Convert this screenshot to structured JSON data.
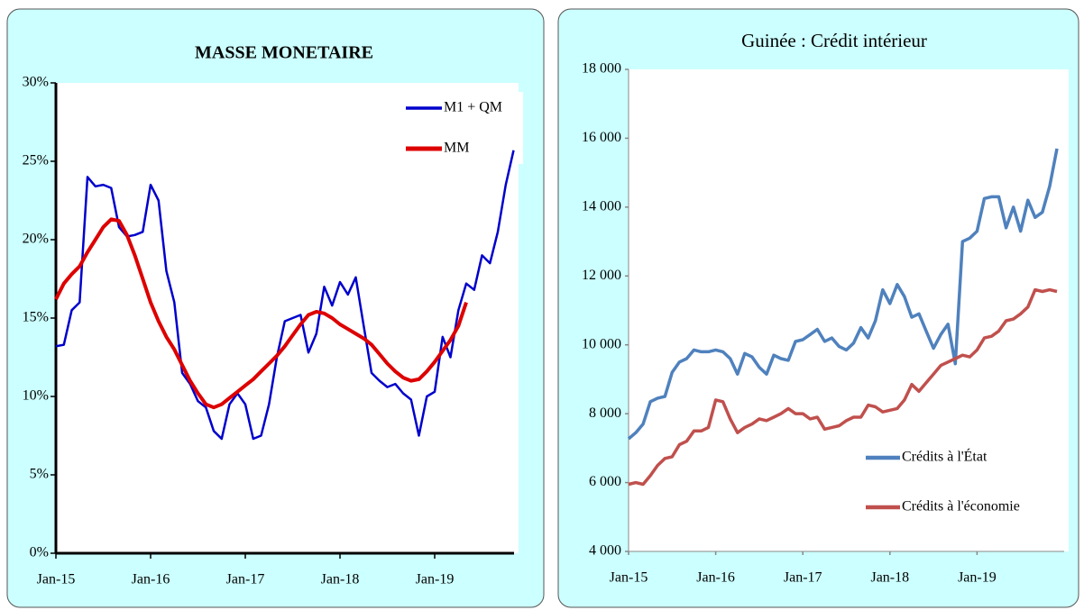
{
  "chart_data": [
    {
      "type": "line",
      "title": "MASSE MONETAIRE",
      "categories": [
        "Jan-15",
        null,
        null,
        null,
        null,
        null,
        null,
        null,
        null,
        null,
        null,
        null,
        "Jan-16",
        null,
        null,
        null,
        null,
        null,
        null,
        null,
        null,
        null,
        null,
        null,
        "Jan-17",
        null,
        null,
        null,
        null,
        null,
        null,
        null,
        null,
        null,
        null,
        null,
        "Jan-18",
        null,
        null,
        null,
        null,
        null,
        null,
        null,
        null,
        null,
        null,
        null,
        "Jan-19",
        null,
        null,
        null,
        null,
        null,
        null,
        null,
        null,
        null,
        null,
        null
      ],
      "series": [
        {
          "name": "M1 + QM",
          "color": "#0000cc",
          "values": [
            13.2,
            13.3,
            15.5,
            16,
            24,
            23.4,
            23.5,
            23.3,
            20.8,
            20.2,
            20.3,
            20.5,
            23.5,
            22.5,
            18,
            16,
            11.5,
            10.8,
            9.7,
            9.3,
            7.8,
            7.3,
            9.5,
            10.2,
            9.5,
            7.3,
            7.5,
            9.5,
            12.5,
            14.8,
            15,
            15.2,
            12.8,
            14,
            17,
            15.8,
            17.3,
            16.5,
            17.6,
            14.5,
            11.5,
            11,
            10.6,
            10.8,
            10.2,
            9.8,
            7.5,
            10,
            10.3,
            13.8,
            12.5,
            15.5,
            17.2,
            16.8,
            19,
            18.5,
            20.5,
            23.5,
            25.7,
            null
          ]
        },
        {
          "name": "MM",
          "color": "#dd0000",
          "values": [
            16.2,
            17.2,
            17.8,
            18.3,
            19.2,
            20,
            20.8,
            21.3,
            21.2,
            20.3,
            19,
            17.5,
            16,
            14.8,
            13.8,
            13,
            12,
            11,
            10.2,
            9.5,
            9.3,
            9.5,
            9.9,
            10.3,
            10.7,
            11.1,
            11.6,
            12.1,
            12.6,
            13.2,
            13.9,
            14.6,
            15.2,
            15.4,
            15.3,
            15,
            14.6,
            14.3,
            14,
            13.7,
            13.3,
            12.7,
            12.1,
            11.6,
            11.2,
            11,
            11.1,
            11.6,
            12.2,
            12.9,
            13.6,
            14.5,
            16,
            null,
            null,
            null,
            null,
            null,
            null,
            null
          ]
        }
      ],
      "ylim": [
        0,
        30
      ],
      "yticks": [
        {
          "value": 0,
          "label": "0%"
        },
        {
          "value": 5,
          "label": "5%"
        },
        {
          "value": 10,
          "label": "10%"
        },
        {
          "value": 15,
          "label": "15%"
        },
        {
          "value": 20,
          "label": "20%"
        },
        {
          "value": 25,
          "label": "25%"
        },
        {
          "value": 30,
          "label": "30%"
        }
      ],
      "legend": "upper right",
      "grid": false
    },
    {
      "type": "line",
      "title": "Guinée : Crédit intérieur",
      "categories": [
        "Jan-15",
        null,
        null,
        null,
        null,
        null,
        null,
        null,
        null,
        null,
        null,
        null,
        "Jan-16",
        null,
        null,
        null,
        null,
        null,
        null,
        null,
        null,
        null,
        null,
        null,
        "Jan-17",
        null,
        null,
        null,
        null,
        null,
        null,
        null,
        null,
        null,
        null,
        null,
        "Jan-18",
        null,
        null,
        null,
        null,
        null,
        null,
        null,
        null,
        null,
        null,
        null,
        "Jan-19",
        null,
        null,
        null,
        null,
        null,
        null,
        null,
        null,
        null,
        null,
        null
      ],
      "series": [
        {
          "name": "Crédits à l'État",
          "color": "#4f81bd",
          "values": [
            7270,
            7450,
            7700,
            8350,
            8450,
            8500,
            9200,
            9500,
            9600,
            9850,
            9800,
            9800,
            9850,
            9800,
            9600,
            9150,
            9750,
            9650,
            9350,
            9150,
            9700,
            9600,
            9550,
            10100,
            10150,
            10300,
            10450,
            10100,
            10200,
            9950,
            9850,
            10050,
            10500,
            10200,
            10700,
            11600,
            11200,
            11750,
            11400,
            10800,
            10900,
            10400,
            9900,
            10300,
            10600,
            9450,
            13000,
            13100,
            13300,
            14250,
            14300,
            14300,
            13400,
            14000,
            13300,
            14200,
            13700,
            13850,
            14600,
            15700
          ]
        },
        {
          "name": "Crédits à l'économie",
          "color": "#c0504d",
          "values": [
            5950,
            6000,
            5950,
            6200,
            6500,
            6700,
            6750,
            7100,
            7200,
            7500,
            7500,
            7600,
            8400,
            8350,
            7850,
            7450,
            7600,
            7700,
            7850,
            7800,
            7900,
            8000,
            8150,
            8000,
            8000,
            7850,
            7900,
            7550,
            7600,
            7650,
            7800,
            7900,
            7900,
            8250,
            8200,
            8050,
            8100,
            8150,
            8400,
            8850,
            8650,
            8900,
            9150,
            9400,
            9500,
            9600,
            9700,
            9650,
            9850,
            10200,
            10250,
            10400,
            10700,
            10750,
            10900,
            11100,
            11600,
            11550,
            11600,
            11550
          ]
        }
      ],
      "ylim": [
        4000,
        18000
      ],
      "yticks": [
        {
          "value": 4000,
          "label": "4 000"
        },
        {
          "value": 6000,
          "label": "6 000"
        },
        {
          "value": 8000,
          "label": "8 000"
        },
        {
          "value": 10000,
          "label": "10 000"
        },
        {
          "value": 12000,
          "label": "12 000"
        },
        {
          "value": 14000,
          "label": "14 000"
        },
        {
          "value": 16000,
          "label": "16 000"
        },
        {
          "value": 18000,
          "label": "18 000"
        }
      ],
      "legend": "lower right",
      "grid": false
    }
  ]
}
